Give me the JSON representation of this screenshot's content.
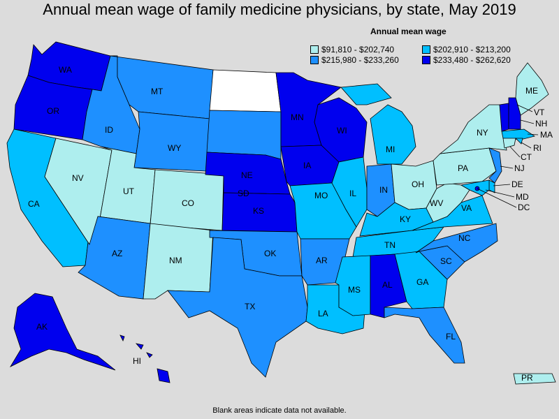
{
  "title": "Annual mean wage of family medicine physicians, by state, May 2019",
  "legend": {
    "title": "Annual mean wage",
    "items": [
      {
        "label": "$91,810 - $202,740",
        "color": "#aeeeee"
      },
      {
        "label": "$202,910 - $213,200",
        "color": "#00bfff"
      },
      {
        "label": "$215,980 - $233,260",
        "color": "#1e90ff"
      },
      {
        "label": "$233,480 - $262,620",
        "color": "#0000ee"
      }
    ]
  },
  "footnote": "Blank areas indicate data not available.",
  "states": {
    "WA": "WA",
    "OR": "OR",
    "CA": "CA",
    "NV": "NV",
    "ID": "ID",
    "MT": "MT",
    "WY": "WY",
    "UT": "UT",
    "CO": "CO",
    "AZ": "AZ",
    "NM": "NM",
    "SD": "SD",
    "NE": "NE",
    "KS": "KS",
    "OK": "OK",
    "TX": "TX",
    "MN": "MN",
    "IA": "IA",
    "MO": "MO",
    "AR": "AR",
    "LA": "LA",
    "WI": "WI",
    "IL": "IL",
    "MS": "MS",
    "MI": "MI",
    "IN": "IN",
    "KY": "KY",
    "TN": "TN",
    "AL": "AL",
    "OH": "OH",
    "GA": "GA",
    "FL": "FL",
    "SC": "SC",
    "NC": "NC",
    "VA": "VA",
    "WV": "WV",
    "PA": "PA",
    "NY": "NY",
    "ME": "ME",
    "VT": "VT",
    "NH": "NH",
    "MA": "MA",
    "RI": "RI",
    "CT": "CT",
    "NJ": "NJ",
    "DE": "DE",
    "MD": "MD",
    "DC": "DC",
    "AK": "AK",
    "HI": "HI",
    "PR": "PR"
  },
  "map_data": {
    "WA": 4,
    "OR": 4,
    "CA": 2,
    "NV": 1,
    "ID": 3,
    "MT": 3,
    "WY": 3,
    "UT": 1,
    "CO": 1,
    "AZ": 3,
    "NM": 1,
    "ND": 0,
    "SD": 3,
    "NE": 4,
    "KS": 4,
    "OK": 3,
    "TX": 3,
    "MN": 4,
    "IA": 4,
    "MO": 2,
    "AR": 3,
    "LA": 2,
    "WI": 4,
    "IL": 2,
    "MS": 2,
    "MI": 2,
    "IN": 3,
    "KY": 2,
    "TN": 2,
    "AL": 4,
    "OH": 1,
    "GA": 2,
    "FL": 3,
    "SC": 3,
    "NC": 3,
    "VA": 2,
    "WV": 1,
    "PA": 1,
    "NY": 1,
    "ME": 1,
    "VT": 4,
    "NH": 4,
    "MA": 2,
    "RI": 2,
    "CT": 1,
    "NJ": 3,
    "DE": 2,
    "MD": 2,
    "DC": 4,
    "AK": 4,
    "HI": 4,
    "PR": 1
  },
  "colors": {
    "0": "#ffffff",
    "1": "#aeeeee",
    "2": "#00bfff",
    "3": "#1e90ff",
    "4": "#0000ee"
  }
}
